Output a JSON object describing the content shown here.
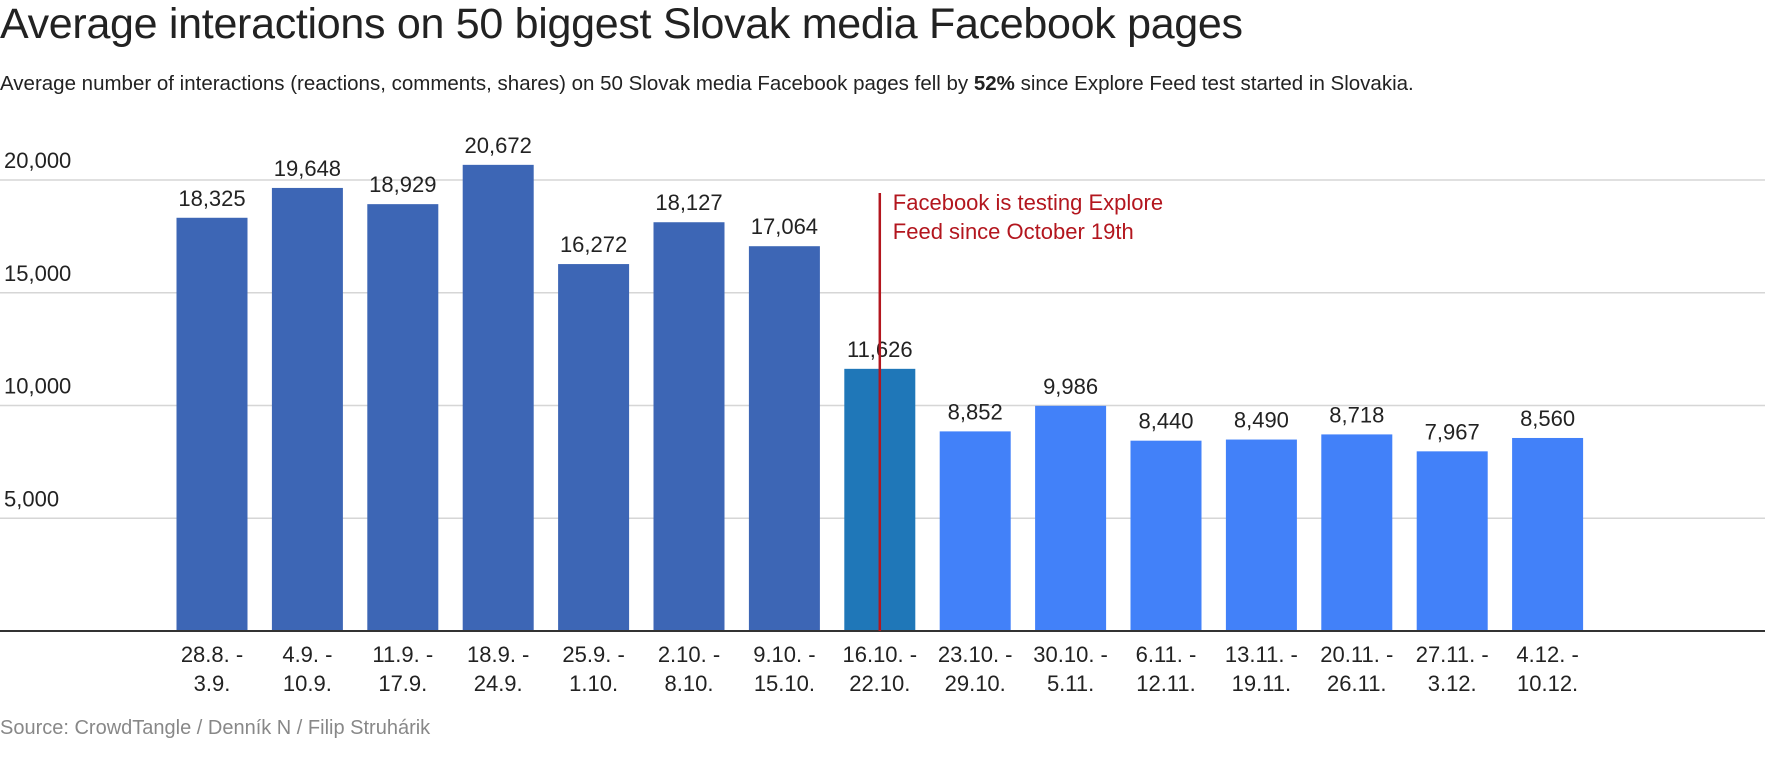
{
  "title": "Average interactions on 50 biggest Slovak media Facebook pages",
  "subtitle": {
    "before": "Average number of interactions (reactions, comments, shares) on 50 Slovak media Facebook pages fell by ",
    "bold": "52%",
    "after": " since Explore Feed test started in Slovakia."
  },
  "source": "Source: CrowdTangle / Denník N / Filip Struhárik",
  "colors": {
    "before_test": "#3d66b5",
    "test_week": "#1f77b8",
    "after_test": "#4281f9",
    "annotation": "#b3161e",
    "grid": "#d6d6d6",
    "axis": "#333333",
    "text": "#222222"
  },
  "chart_data": {
    "type": "bar",
    "categories": [
      [
        "28.8. -",
        "3.9."
      ],
      [
        "4.9. -",
        "10.9."
      ],
      [
        "11.9. -",
        "17.9."
      ],
      [
        "18.9. -",
        "24.9."
      ],
      [
        "25.9. -",
        "1.10."
      ],
      [
        "2.10. -",
        "8.10."
      ],
      [
        "9.10. -",
        "15.10."
      ],
      [
        "16.10. -",
        "22.10."
      ],
      [
        "23.10. -",
        "29.10."
      ],
      [
        "30.10. -",
        "5.11."
      ],
      [
        "6.11. -",
        "12.11."
      ],
      [
        "13.11. -",
        "19.11."
      ],
      [
        "20.11. -",
        "26.11."
      ],
      [
        "27.11. -",
        "3.12."
      ],
      [
        "4.12. -",
        "10.12."
      ]
    ],
    "values": [
      18325,
      19648,
      18929,
      20672,
      16272,
      18127,
      17064,
      11626,
      8852,
      9986,
      8440,
      8490,
      8718,
      7967,
      8560
    ],
    "value_labels": [
      "18,325",
      "19,648",
      "18,929",
      "20,672",
      "16,272",
      "18,127",
      "17,064",
      "11,626",
      "8,852",
      "9,986",
      "8,440",
      "8,490",
      "8,718",
      "7,967",
      "8,560"
    ],
    "bar_groups": [
      "before_test",
      "before_test",
      "before_test",
      "before_test",
      "before_test",
      "before_test",
      "before_test",
      "test_week",
      "after_test",
      "after_test",
      "after_test",
      "after_test",
      "after_test",
      "after_test",
      "after_test"
    ],
    "yticks": [
      {
        "value": 5000,
        "label": "5,000"
      },
      {
        "value": 10000,
        "label": "10,000"
      },
      {
        "value": 15000,
        "label": "15,000"
      },
      {
        "value": 20000,
        "label": "20,000"
      }
    ],
    "ylim": [
      0,
      20672
    ],
    "grid": true,
    "legend": "none",
    "annotation": {
      "lines": [
        "Facebook is testing Explore",
        "Feed since October 19th"
      ],
      "category_index": 7
    }
  }
}
